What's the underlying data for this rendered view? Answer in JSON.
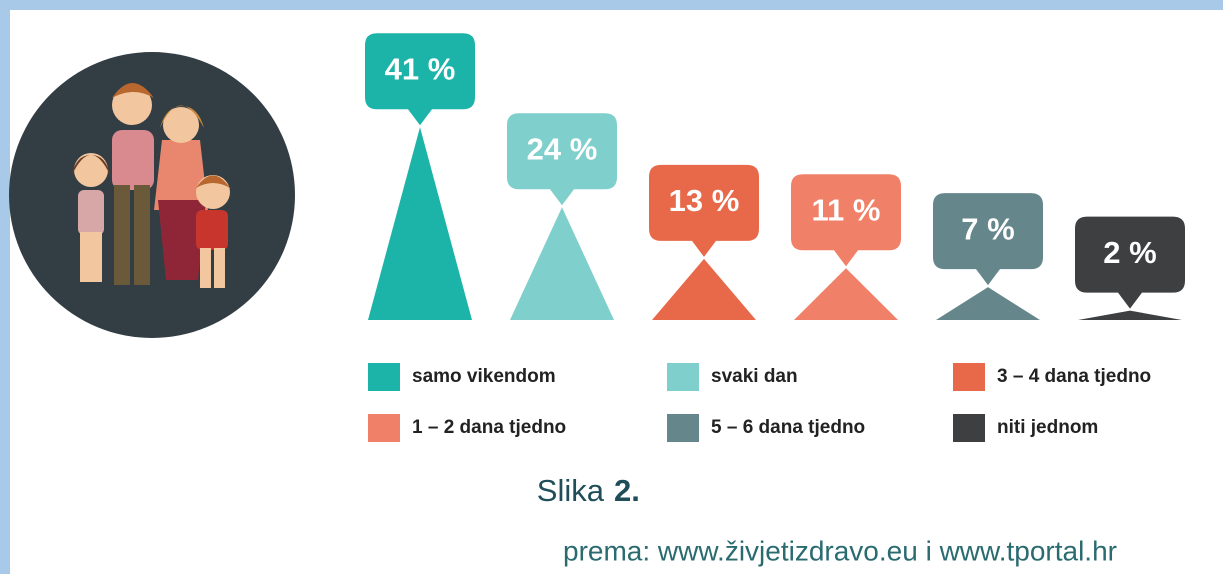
{
  "chart_data": {
    "type": "triangle",
    "categories": [
      "samo vikendom",
      "svaki dan",
      "3 – 4 dana tjedno",
      "1 – 2 dana tjedno",
      "5 – 6 dana tjedno",
      "niti jednom"
    ],
    "values": [
      41,
      24,
      13,
      11,
      7,
      2
    ],
    "value_labels": [
      "41 %",
      "24 %",
      "13 %",
      "11 %",
      "7 %",
      "2 %"
    ],
    "colors": [
      "#1cb3a8",
      "#7fcfcc",
      "#e8694a",
      "#f08068",
      "#65868a",
      "#3d3f41"
    ],
    "figure_label": "Slika",
    "figure_number": "2.",
    "source": "prema: www.živjetizdravo.eu i www.tportal.hr"
  }
}
